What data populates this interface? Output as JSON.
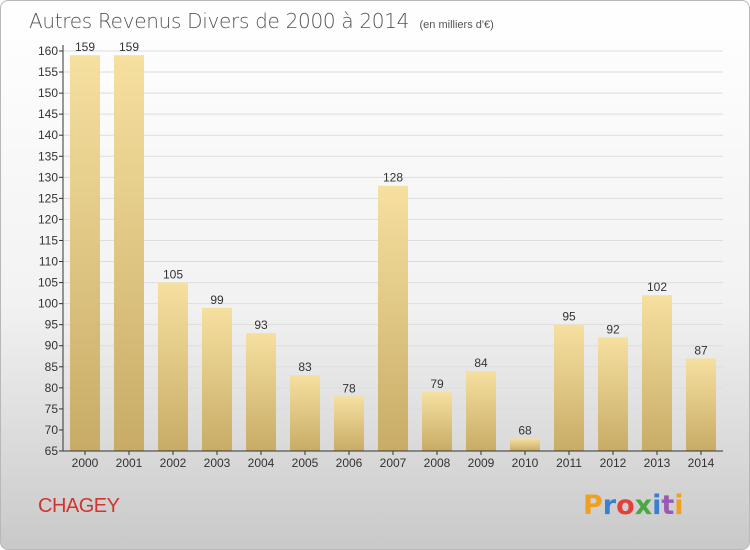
{
  "chart_data": {
    "type": "bar",
    "title": "Autres Revenus Divers de 2000 à 2014",
    "subtitle": "(en milliers d'€)",
    "categories": [
      "2000",
      "2001",
      "2002",
      "2003",
      "2004",
      "2005",
      "2006",
      "2007",
      "2008",
      "2009",
      "2010",
      "2011",
      "2012",
      "2013",
      "2014"
    ],
    "values": [
      159,
      159,
      105,
      99,
      93,
      83,
      78,
      128,
      79,
      84,
      68,
      95,
      92,
      102,
      87
    ],
    "ylim": [
      65,
      160
    ],
    "yticks": [
      65,
      70,
      75,
      80,
      85,
      90,
      95,
      100,
      105,
      110,
      115,
      120,
      125,
      130,
      135,
      140,
      145,
      150,
      155,
      160
    ],
    "grid": true,
    "data_labels": true
  },
  "footer": {
    "location": "CHAGEY"
  },
  "logo": {
    "text": "Proxiti",
    "colors": [
      "#f0a020",
      "#3a7fd0",
      "#e2403a",
      "#49a843",
      "#3a7fd0",
      "#9b59b6",
      "#f0a020"
    ]
  },
  "colors": {
    "bar_light": "#f6e0a0",
    "bar_dark": "#c8ac66",
    "axis": "#333333",
    "grid": "#dddddd",
    "location": "#d0352f"
  }
}
